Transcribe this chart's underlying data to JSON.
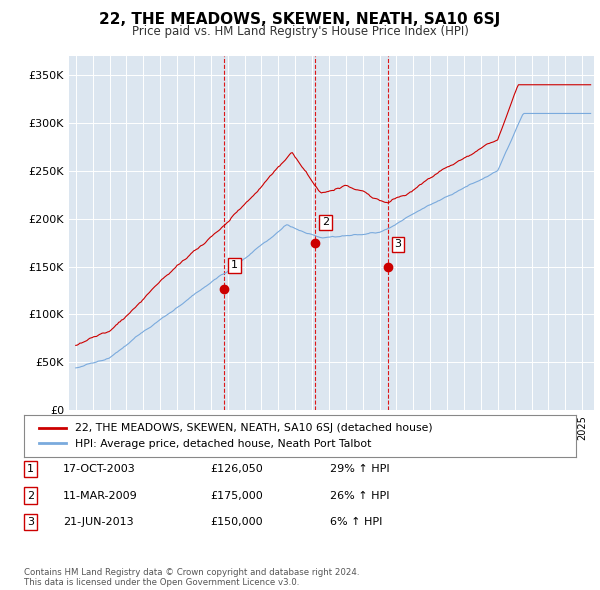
{
  "title": "22, THE MEADOWS, SKEWEN, NEATH, SA10 6SJ",
  "subtitle": "Price paid vs. HM Land Registry's House Price Index (HPI)",
  "background_color": "#ffffff",
  "plot_bg_color": "#dce6f0",
  "grid_color": "#ffffff",
  "ylim": [
    0,
    370000
  ],
  "yticks": [
    0,
    50000,
    100000,
    150000,
    200000,
    250000,
    300000,
    350000
  ],
  "ytick_labels": [
    "£0",
    "£50K",
    "£100K",
    "£150K",
    "£200K",
    "£250K",
    "£300K",
    "£350K"
  ],
  "sale_dates_decimal": [
    2003.79,
    2009.19,
    2013.47
  ],
  "sale_prices": [
    126050,
    175000,
    150000
  ],
  "sale_labels": [
    "1",
    "2",
    "3"
  ],
  "vline_color": "#dd0000",
  "red_line_color": "#cc0000",
  "blue_line_color": "#7aaadd",
  "legend_entries": [
    "22, THE MEADOWS, SKEWEN, NEATH, SA10 6SJ (detached house)",
    "HPI: Average price, detached house, Neath Port Talbot"
  ],
  "table_rows": [
    [
      "1",
      "17-OCT-2003",
      "£126,050",
      "29% ↑ HPI"
    ],
    [
      "2",
      "11-MAR-2009",
      "£175,000",
      "26% ↑ HPI"
    ],
    [
      "3",
      "21-JUN-2013",
      "£150,000",
      "6% ↑ HPI"
    ]
  ],
  "footnote": "Contains HM Land Registry data © Crown copyright and database right 2024.\nThis data is licensed under the Open Government Licence v3.0."
}
